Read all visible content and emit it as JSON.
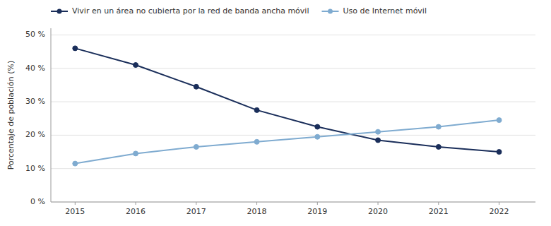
{
  "chart_data": {
    "type": "line",
    "ylabel": "Porcentaje de población (%)",
    "x": [
      2015,
      2016,
      2017,
      2018,
      2019,
      2020,
      2021,
      2022
    ],
    "series": [
      {
        "name": "Vivir en un área no cubierta por la red de banda ancha móvil",
        "color": "#1a2e5a",
        "marker": "circle",
        "values": [
          46,
          41,
          34.5,
          27.5,
          22.5,
          18.5,
          16.5,
          15
        ]
      },
      {
        "name": "Uso de Internet móvil",
        "color": "#7fabd0",
        "marker": "circle",
        "values": [
          11.5,
          14.5,
          16.5,
          18,
          19.5,
          21,
          22.5,
          24.5
        ]
      }
    ],
    "xlim": [
      2014.6,
      2022.6
    ],
    "xticks": [
      2015,
      2016,
      2017,
      2018,
      2019,
      2020,
      2021,
      2022
    ],
    "ylim": [
      0,
      52
    ],
    "yticks": [
      {
        "value": 0,
        "label": "0 %"
      },
      {
        "value": 10,
        "label": "10 %"
      },
      {
        "value": 20,
        "label": "20 %"
      },
      {
        "value": 30,
        "label": "30 %"
      },
      {
        "value": 40,
        "label": "40 %"
      },
      {
        "value": 50,
        "label": "50 %"
      }
    ],
    "grid": true,
    "legend": "upper left"
  }
}
